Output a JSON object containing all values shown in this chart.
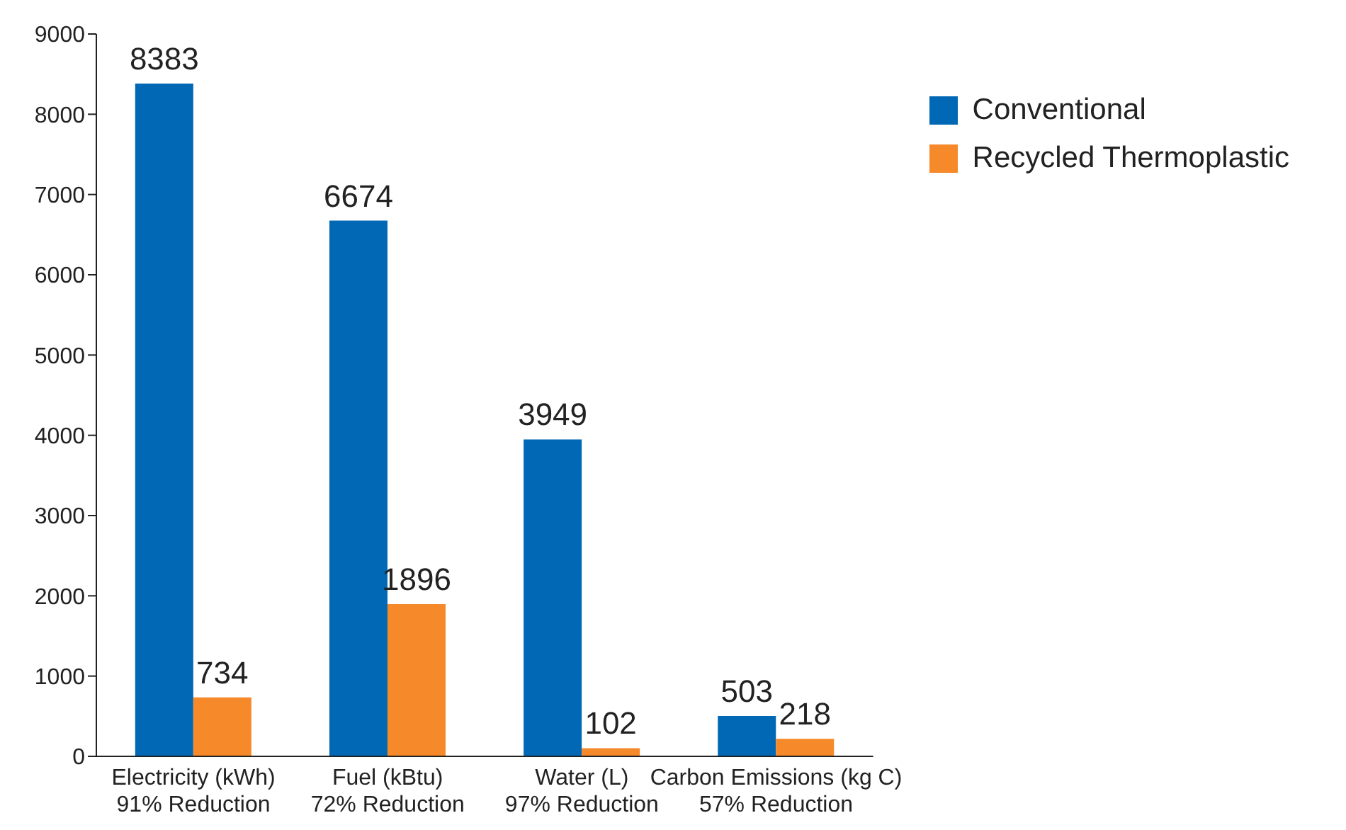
{
  "chart_data": {
    "type": "bar",
    "categories": [
      "Electricity (kWh)\n91% Reduction",
      "Fuel (kBtu)\n72% Reduction",
      "Water (L)\n97% Reduction",
      "Carbon Emissions (kg C)\n57% Reduction"
    ],
    "series": [
      {
        "name": "Conventional",
        "color": "#0068b4",
        "values": [
          8383,
          6674,
          3949,
          503
        ]
      },
      {
        "name": "Recycled Thermoplastic",
        "color": "#f6892a",
        "values": [
          734,
          1896,
          102,
          218
        ]
      }
    ],
    "ylim": [
      0,
      9000
    ],
    "yticks": [
      0,
      1000,
      2000,
      3000,
      4000,
      5000,
      6000,
      7000,
      8000,
      9000
    ],
    "grid": false,
    "legend": "top right",
    "data_labels": true
  }
}
